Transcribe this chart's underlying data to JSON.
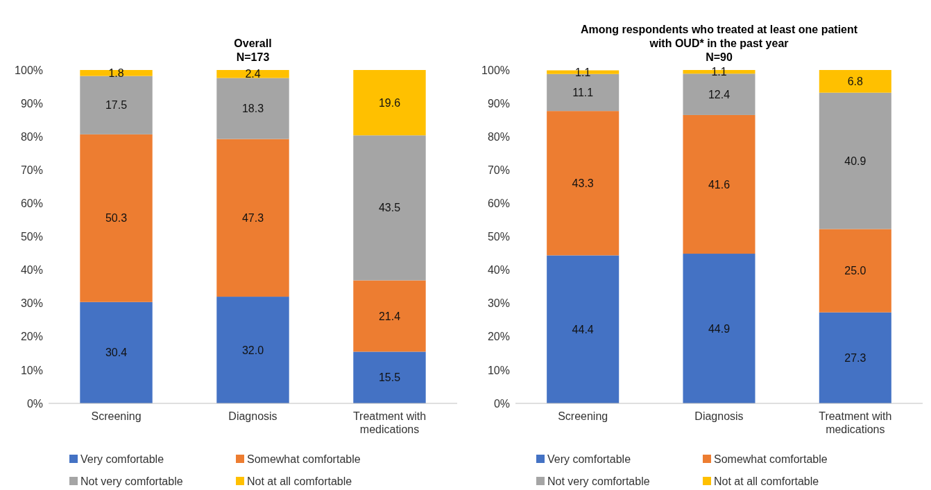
{
  "chart_data": [
    {
      "type": "bar",
      "stacked": true,
      "title": "Overall",
      "subtitle": "N=173",
      "categories": [
        "Screening",
        "Diagnosis",
        "Treatment with medications"
      ],
      "ylim": [
        0,
        100
      ],
      "yticks": [
        {
          "value": 0,
          "label": "0%"
        },
        {
          "value": 10,
          "label": "10%"
        },
        {
          "value": 20,
          "label": "20%"
        },
        {
          "value": 30,
          "label": "30%"
        },
        {
          "value": 40,
          "label": "40%"
        },
        {
          "value": 50,
          "label": "50%"
        },
        {
          "value": 60,
          "label": "60%"
        },
        {
          "value": 70,
          "label": "70%"
        },
        {
          "value": 80,
          "label": "80%"
        },
        {
          "value": 90,
          "label": "90%"
        },
        {
          "value": 100,
          "label": "100%"
        }
      ],
      "legend": "bottom",
      "series": [
        {
          "name": "Very comfortable",
          "color": "#4472c4",
          "values": [
            30.4,
            32.0,
            15.5
          ],
          "value_labels": [
            "30.4",
            "32.0",
            "15.5"
          ]
        },
        {
          "name": "Somewhat comfortable",
          "color": "#ed7d31",
          "values": [
            50.3,
            47.3,
            21.4
          ],
          "value_labels": [
            "50.3",
            "47.3",
            "21.4"
          ]
        },
        {
          "name": "Not very comfortable",
          "color": "#a5a5a5",
          "values": [
            17.5,
            18.3,
            43.5
          ],
          "value_labels": [
            "17.5",
            "18.3",
            "43.5"
          ]
        },
        {
          "name": "Not at all comfortable",
          "color": "#ffc000",
          "values": [
            1.8,
            2.4,
            19.6
          ],
          "value_labels": [
            "1.8",
            "2.4",
            "19.6"
          ]
        }
      ]
    },
    {
      "type": "bar",
      "stacked": true,
      "title": "Among respondents who treated at least one patient with OUD* in the past year",
      "subtitle": "N=90",
      "categories": [
        "Screening",
        "Diagnosis",
        "Treatment with medications"
      ],
      "ylim": [
        0,
        100
      ],
      "yticks": [
        {
          "value": 0,
          "label": "0%"
        },
        {
          "value": 10,
          "label": "10%"
        },
        {
          "value": 20,
          "label": "20%"
        },
        {
          "value": 30,
          "label": "30%"
        },
        {
          "value": 40,
          "label": "40%"
        },
        {
          "value": 50,
          "label": "50%"
        },
        {
          "value": 60,
          "label": "60%"
        },
        {
          "value": 70,
          "label": "70%"
        },
        {
          "value": 80,
          "label": "80%"
        },
        {
          "value": 90,
          "label": "90%"
        },
        {
          "value": 100,
          "label": "100%"
        }
      ],
      "legend": "bottom",
      "series": [
        {
          "name": "Very comfortable",
          "color": "#4472c4",
          "values": [
            44.4,
            44.9,
            27.3
          ],
          "value_labels": [
            "44.4",
            "44.9",
            "27.3"
          ]
        },
        {
          "name": "Somewhat comfortable",
          "color": "#ed7d31",
          "values": [
            43.3,
            41.6,
            25.0
          ],
          "value_labels": [
            "43.3",
            "41.6",
            "25.0"
          ]
        },
        {
          "name": "Not very comfortable",
          "color": "#a5a5a5",
          "values": [
            11.1,
            12.4,
            40.9
          ],
          "value_labels": [
            "11.1",
            "12.4",
            "40.9"
          ]
        },
        {
          "name": "Not at all comfortable",
          "color": "#ffc000",
          "values": [
            1.1,
            1.1,
            6.8
          ],
          "value_labels": [
            "1.1",
            "1.1",
            "6.8"
          ]
        }
      ]
    }
  ]
}
